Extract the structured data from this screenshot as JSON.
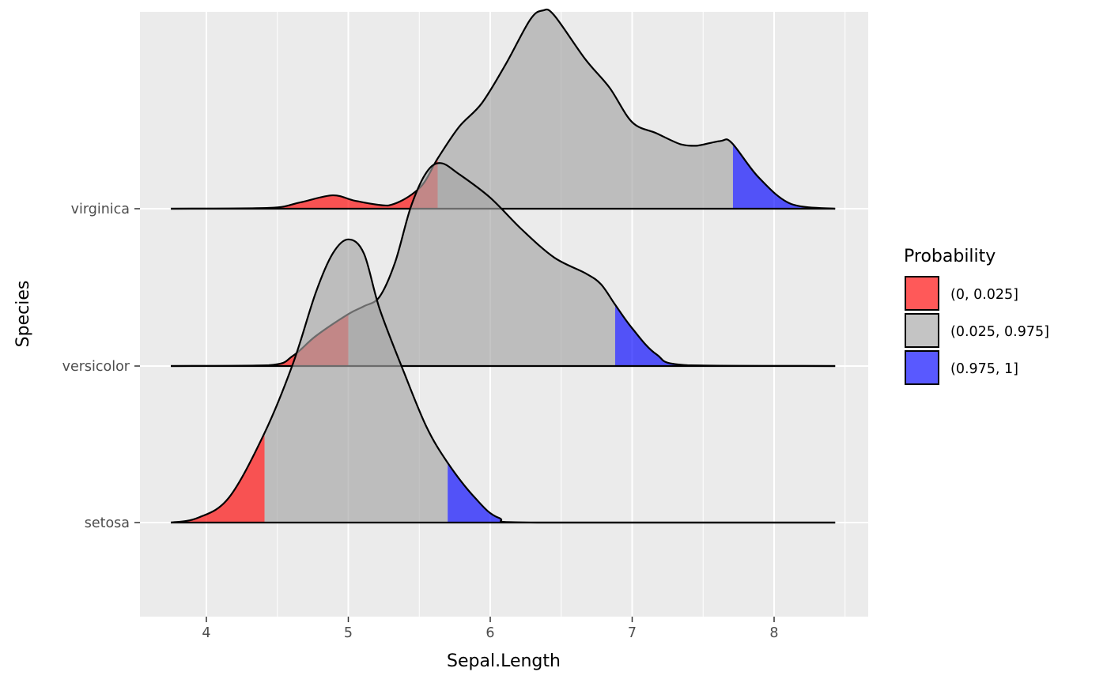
{
  "chart_data": {
    "type": "ridgeline-density",
    "xlabel": "Sepal.Length",
    "ylabel": "Species",
    "xlim": [
      3.53,
      8.67
    ],
    "x_ticks": [
      4,
      5,
      6,
      7,
      8
    ],
    "x_tick_labels": [
      "4",
      "5",
      "6",
      "7",
      "8"
    ],
    "grid": true,
    "legend": {
      "title": "Probability",
      "position": "right",
      "entries": [
        {
          "label": "(0, 0.025]",
          "color": "#ff0000"
        },
        {
          "label": "(0.025, 0.975]",
          "color": "#a4a4a4"
        },
        {
          "label": "(0.975, 1]",
          "color": "#0000ff"
        }
      ]
    },
    "fill_alpha": 0.65,
    "series": [
      {
        "name": "setosa",
        "quantiles": [
          4.41,
          5.7
        ],
        "density": [
          [
            3.75,
            0
          ],
          [
            3.94,
            0.03
          ],
          [
            4.16,
            0.16
          ],
          [
            4.41,
            0.57
          ],
          [
            4.61,
            1.01
          ],
          [
            4.77,
            1.46
          ],
          [
            4.89,
            1.71
          ],
          [
            5.0,
            1.8
          ],
          [
            5.11,
            1.71
          ],
          [
            5.22,
            1.36
          ],
          [
            5.39,
            0.96
          ],
          [
            5.55,
            0.61
          ],
          [
            5.7,
            0.38
          ],
          [
            5.89,
            0.16
          ],
          [
            6.06,
            0.03
          ],
          [
            6.33,
            0
          ],
          [
            8.43,
            0
          ]
        ]
      },
      {
        "name": "versicolor",
        "quantiles": [
          5.0,
          6.88
        ],
        "density": [
          [
            3.75,
            0
          ],
          [
            4.44,
            0.005
          ],
          [
            4.61,
            0.065
          ],
          [
            4.77,
            0.19
          ],
          [
            5.0,
            0.33
          ],
          [
            5.11,
            0.38
          ],
          [
            5.22,
            0.44
          ],
          [
            5.33,
            0.66
          ],
          [
            5.44,
            1.01
          ],
          [
            5.55,
            1.23
          ],
          [
            5.65,
            1.29
          ],
          [
            5.78,
            1.22
          ],
          [
            6.0,
            1.07
          ],
          [
            6.22,
            0.87
          ],
          [
            6.45,
            0.69
          ],
          [
            6.67,
            0.59
          ],
          [
            6.78,
            0.52
          ],
          [
            6.88,
            0.39
          ],
          [
            7.0,
            0.24
          ],
          [
            7.17,
            0.075
          ],
          [
            7.39,
            0.005
          ],
          [
            8.43,
            0
          ]
        ]
      },
      {
        "name": "virginica",
        "quantiles": [
          5.63,
          7.71
        ],
        "density": [
          [
            3.75,
            0
          ],
          [
            4.44,
            0.005
          ],
          [
            4.66,
            0.04
          ],
          [
            4.89,
            0.085
          ],
          [
            5.05,
            0.05
          ],
          [
            5.28,
            0.02
          ],
          [
            5.5,
            0.13
          ],
          [
            5.63,
            0.32
          ],
          [
            5.78,
            0.52
          ],
          [
            5.94,
            0.67
          ],
          [
            6.11,
            0.92
          ],
          [
            6.28,
            1.2
          ],
          [
            6.37,
            1.26
          ],
          [
            6.45,
            1.23
          ],
          [
            6.67,
            0.95
          ],
          [
            6.84,
            0.77
          ],
          [
            7.0,
            0.55
          ],
          [
            7.17,
            0.48
          ],
          [
            7.34,
            0.41
          ],
          [
            7.45,
            0.4
          ],
          [
            7.62,
            0.43
          ],
          [
            7.7,
            0.42
          ],
          [
            7.89,
            0.2
          ],
          [
            8.12,
            0.03
          ],
          [
            8.43,
            0
          ]
        ]
      }
    ]
  }
}
